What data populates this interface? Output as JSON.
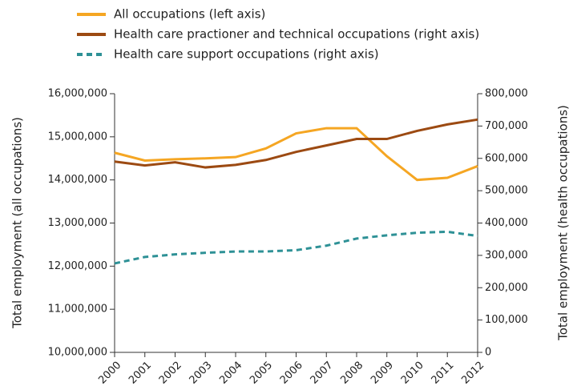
{
  "chart_data": {
    "type": "line",
    "x": [
      2000,
      2001,
      2002,
      2003,
      2004,
      2005,
      2006,
      2007,
      2008,
      2009,
      2010,
      2011,
      2012
    ],
    "xlim": [
      2000,
      2012
    ],
    "xticks": [
      2000,
      2001,
      2002,
      2003,
      2004,
      2005,
      2006,
      2007,
      2008,
      2009,
      2010,
      2011,
      2012
    ],
    "ylabel": "Total employment (all occupations)",
    "y2label": "Total employment (health occupations)",
    "ylim": [
      10000000,
      16000000
    ],
    "yticks": [
      {
        "value": 10000000,
        "label": "10,000,000"
      },
      {
        "value": 11000000,
        "label": "11,000,000"
      },
      {
        "value": 12000000,
        "label": "12,000,000"
      },
      {
        "value": 13000000,
        "label": "13,000,000"
      },
      {
        "value": 14000000,
        "label": "14,000,000"
      },
      {
        "value": 15000000,
        "label": "15,000,000"
      },
      {
        "value": 16000000,
        "label": "16,000,000"
      }
    ],
    "y2lim": [
      0,
      800000
    ],
    "y2ticks": [
      0,
      {
        "value": 100000,
        "label": "100,000"
      },
      {
        "value": 200000,
        "label": "200,000"
      },
      {
        "value": 300000,
        "label": "300,000"
      },
      {
        "value": 400000,
        "label": "400,000"
      },
      {
        "value": 500000,
        "label": "500,000"
      },
      {
        "value": 600000,
        "label": "600,000"
      },
      {
        "value": 700000,
        "label": "700,000"
      },
      {
        "value": 800000,
        "label": "800,000"
      }
    ],
    "series": [
      {
        "name": "All occupations (left axis)",
        "color": "#f5a623",
        "axis": "y",
        "dash": "solid",
        "values": [
          14630000,
          14450000,
          14480000,
          14500000,
          14530000,
          14730000,
          15080000,
          15200000,
          15200000,
          14550000,
          14000000,
          14050000,
          14320000
        ]
      },
      {
        "name": "Health care practioner and technical occupations (right axis)",
        "color": "#9c4a12",
        "axis": "y2",
        "dash": "solid",
        "values": [
          590000,
          578000,
          588000,
          572000,
          580000,
          595000,
          620000,
          640000,
          660000,
          660000,
          685000,
          705000,
          720000
        ]
      },
      {
        "name": "Health care support occupations (right axis)",
        "color": "#2e9196",
        "axis": "y2",
        "dash": "dashed",
        "values": [
          275000,
          295000,
          303000,
          308000,
          312000,
          312000,
          316000,
          330000,
          352000,
          362000,
          370000,
          373000,
          360000
        ]
      }
    ]
  }
}
